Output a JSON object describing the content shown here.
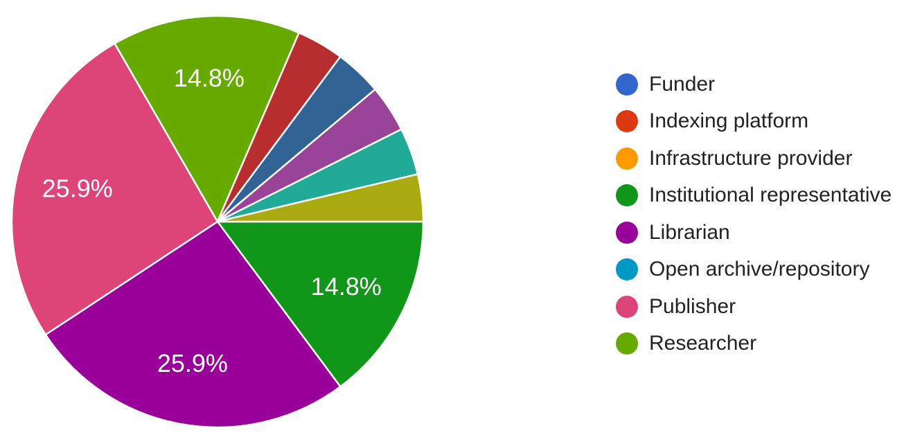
{
  "chart_data": {
    "type": "pie",
    "legend_position": "right",
    "slices": [
      {
        "name": "Institutional representative",
        "value": 14.8,
        "label": "14.8%",
        "color": "#109618"
      },
      {
        "name": "Librarian",
        "value": 25.9,
        "label": "25.9%",
        "color": "#990099"
      },
      {
        "name": "Publisher",
        "value": 25.9,
        "label": "25.9%",
        "color": "#DD4477"
      },
      {
        "name": "Researcher",
        "value": 14.8,
        "label": "14.8%",
        "color": "#66AA00"
      },
      {
        "name": "",
        "value": 3.7,
        "label": "",
        "color": "#B82E2E"
      },
      {
        "name": "",
        "value": 3.7,
        "label": "",
        "color": "#316395"
      },
      {
        "name": "",
        "value": 3.7,
        "label": "",
        "color": "#994499"
      },
      {
        "name": "",
        "value": 3.7,
        "label": "",
        "color": "#22AA99"
      },
      {
        "name": "",
        "value": 3.7,
        "label": "",
        "color": "#AAAA11"
      }
    ],
    "legend": [
      {
        "label": "Funder",
        "color": "#3366CC"
      },
      {
        "label": "Indexing platform",
        "color": "#DC3912"
      },
      {
        "label": "Infrastructure provider",
        "color": "#FF9900"
      },
      {
        "label": "Institutional representative",
        "color": "#109618"
      },
      {
        "label": "Librarian",
        "color": "#990099"
      },
      {
        "label": "Open archive/repository",
        "color": "#0099C6"
      },
      {
        "label": "Publisher",
        "color": "#DD4477"
      },
      {
        "label": "Researcher",
        "color": "#66AA00"
      }
    ]
  }
}
